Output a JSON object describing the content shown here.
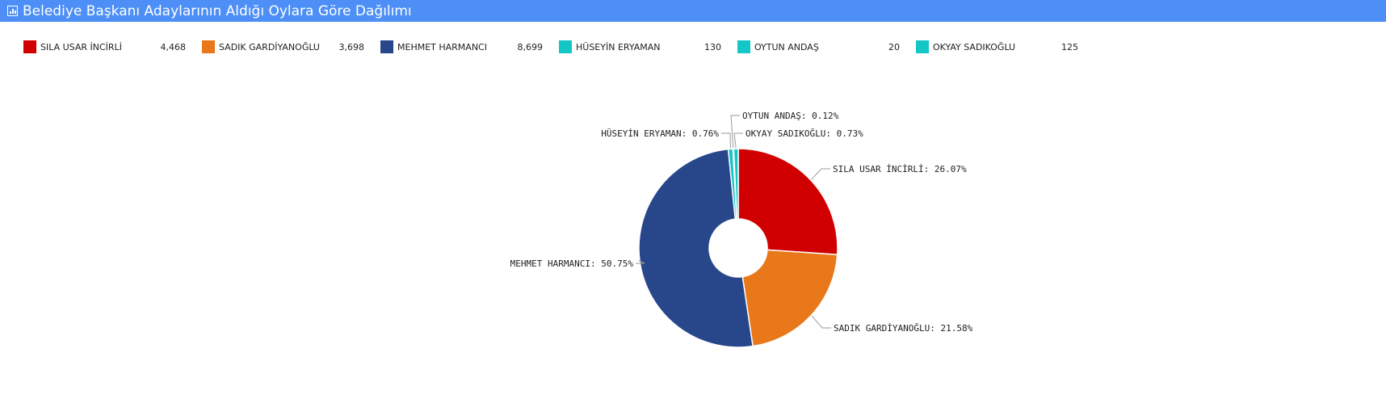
{
  "header": {
    "title": "Belediye Başkanı Adaylarının Aldığı Oylara Göre Dağılımı",
    "icon": "bar-chart-icon"
  },
  "chart_data": {
    "type": "pie",
    "title": "",
    "legend_position": "top",
    "slices": [
      {
        "name": "SILA USAR İNCİRLİ",
        "value": "4,468",
        "pct": 26.07,
        "label": "SILA USAR İNCİRLİ: 26.07%",
        "color": "#d10000"
      },
      {
        "name": "SADIK GARDİYANOĞLU",
        "value": "3,698",
        "pct": 21.58,
        "label": "SADIK GARDİYANOĞLU: 21.58%",
        "color": "#e8781a"
      },
      {
        "name": "MEHMET HARMANCI",
        "value": "8,699",
        "pct": 50.75,
        "label": "MEHMET HARMANCI: 50.75%",
        "color": "#28468a"
      },
      {
        "name": "HÜSEYİN ERYAMAN",
        "value": "130",
        "pct": 0.76,
        "label": "HÜSEYİN ERYAMAN: 0.76%",
        "color": "#14c6c6"
      },
      {
        "name": "OYTUN ANDAŞ",
        "value": "20",
        "pct": 0.12,
        "label": "OYTUN ANDAŞ: 0.12%",
        "color": "#14c6c6"
      },
      {
        "name": "OKYAY SADIKOĞLU",
        "value": "125",
        "pct": 0.73,
        "label": "OKYAY SADIKOĞLU: 0.73%",
        "color": "#14c6c6"
      }
    ]
  }
}
